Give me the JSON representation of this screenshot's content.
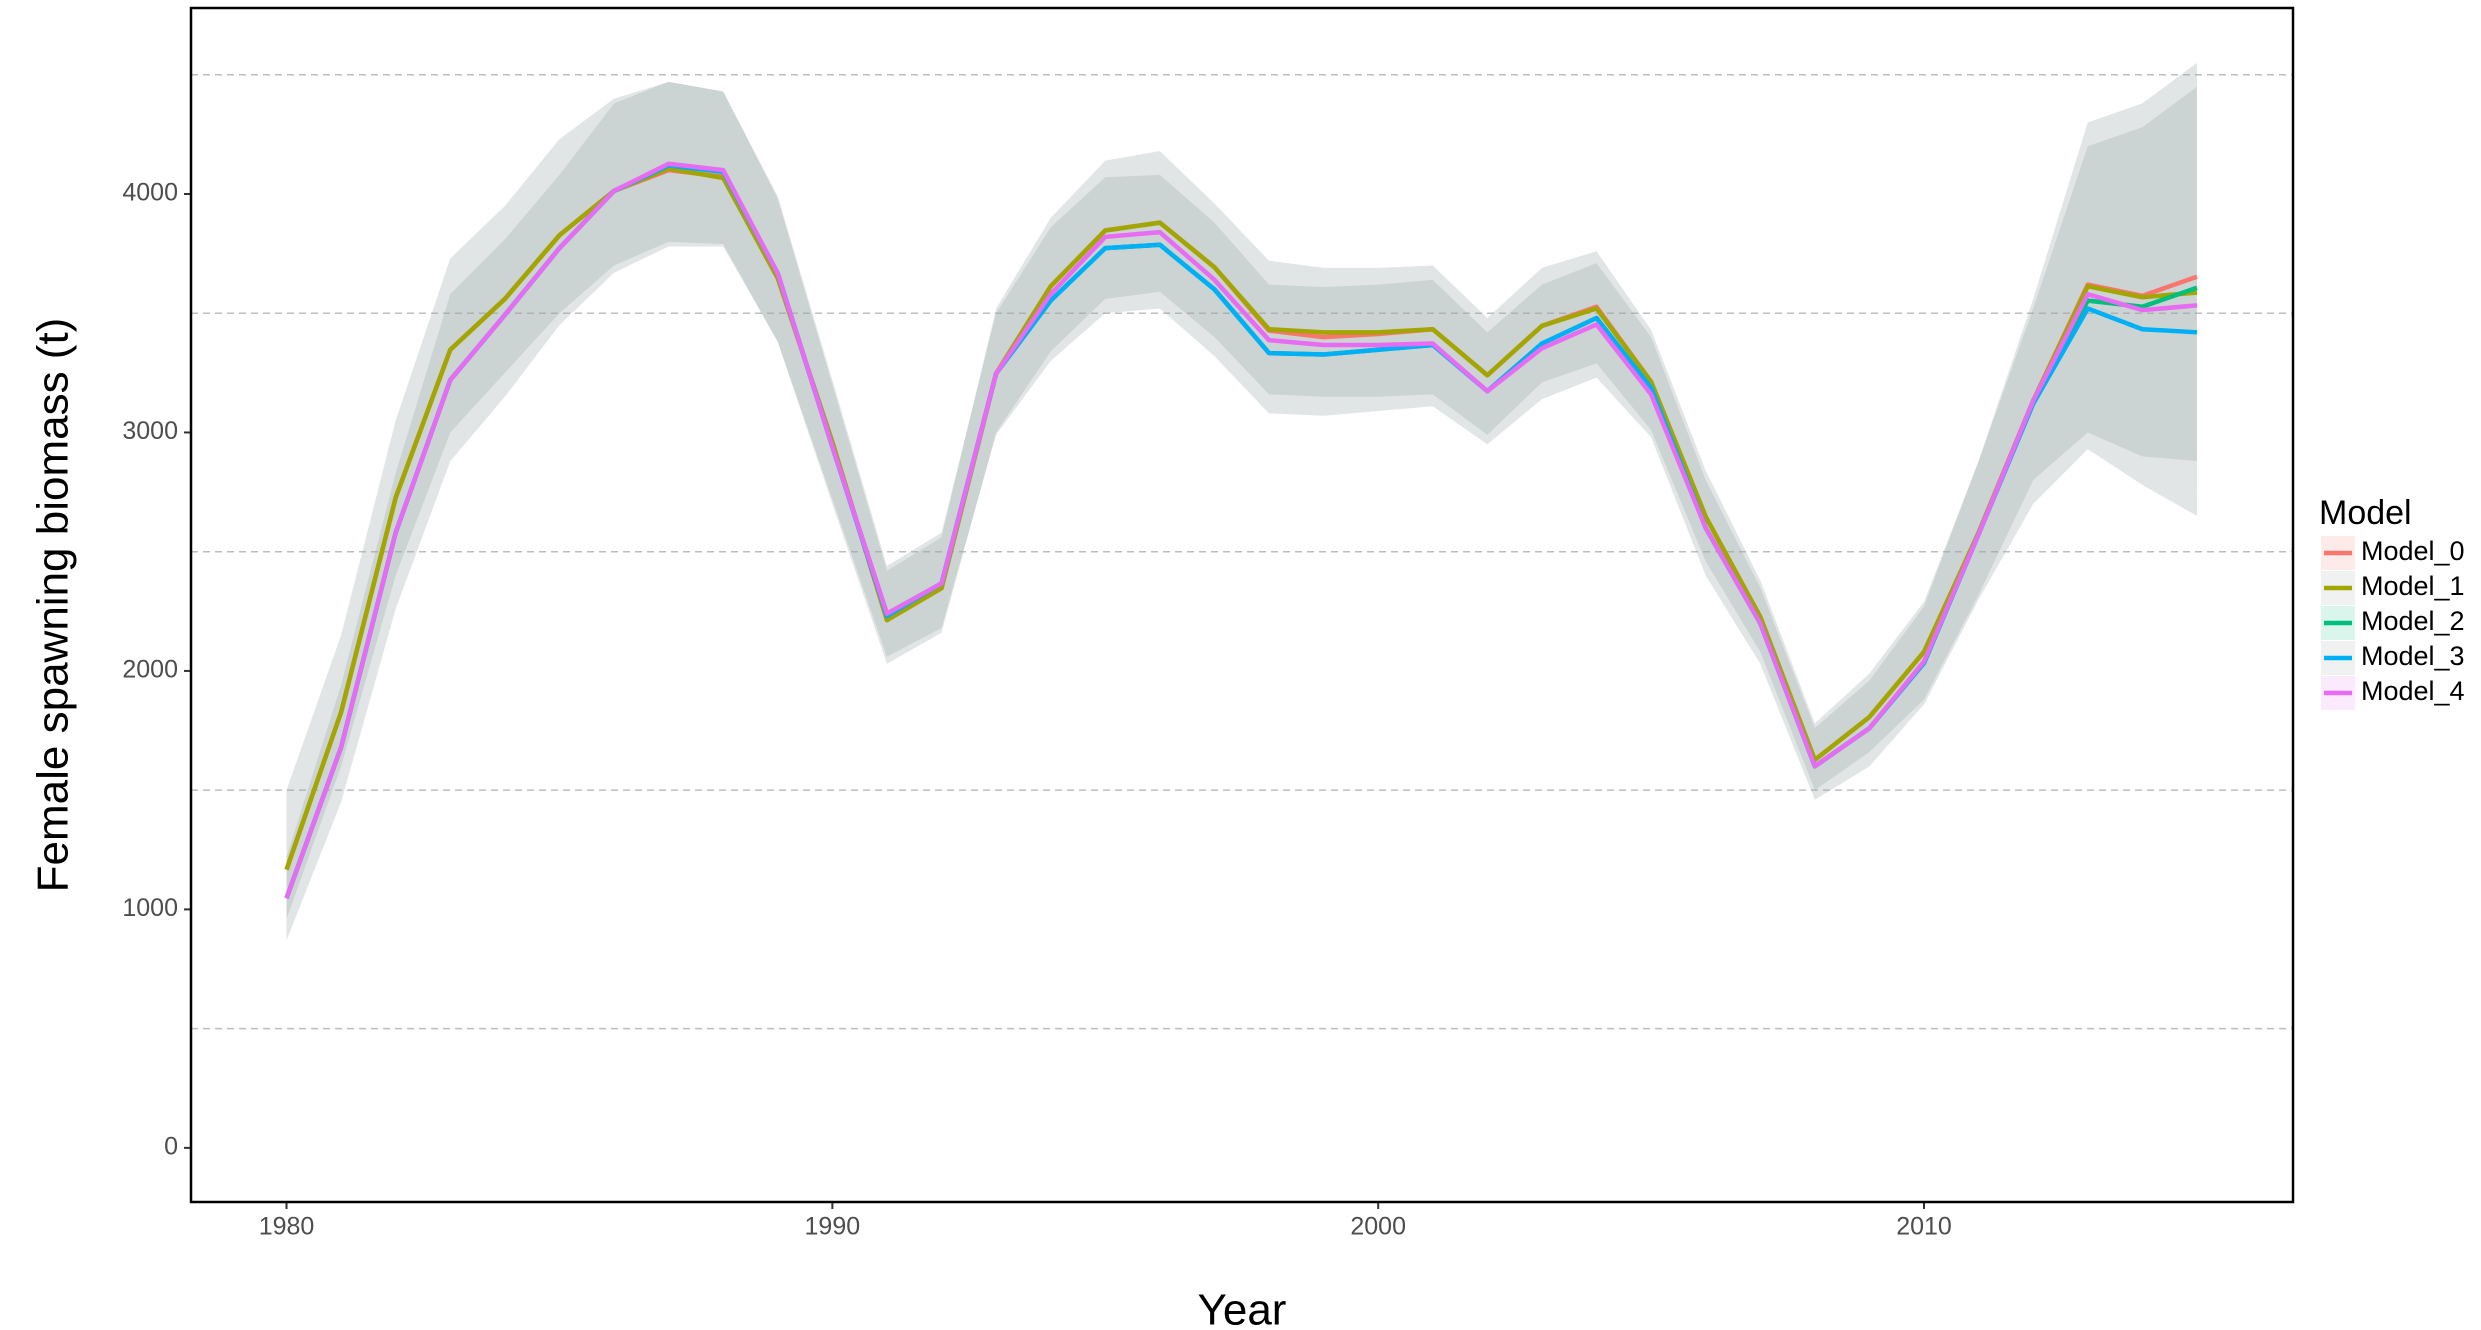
{
  "chart_data": {
    "type": "line",
    "x_label": "Year",
    "y_label": "Female spawning biomass (t)",
    "legend_title": "Model",
    "legend": "right",
    "x": [
      1980,
      1981,
      1982,
      1983,
      1984,
      1985,
      1986,
      1987,
      1988,
      1989,
      1990,
      1991,
      1992,
      1993,
      1994,
      1995,
      1996,
      1997,
      1998,
      1999,
      2000,
      2001,
      2002,
      2003,
      2004,
      2005,
      2006,
      2007,
      2008,
      2009,
      2010,
      2011,
      2012,
      2013,
      2014,
      2015
    ],
    "xlim": [
      1978.25,
      2016.76
    ],
    "xticks": [
      1980,
      1990,
      2000,
      2010
    ],
    "ylim": [
      -227,
      4780
    ],
    "yticks": [
      0,
      1000,
      2000,
      3000,
      4000
    ],
    "minor_grid": [
      500,
      1500,
      2500,
      3500,
      4500
    ],
    "series": [
      {
        "name": "Model_0",
        "color": "#F8766D",
        "values": [
          1167,
          1827,
          2727,
          3347,
          3560,
          3827,
          4013,
          4100,
          4073,
          3647,
          2960,
          2213,
          2347,
          3247,
          3613,
          3847,
          3880,
          3693,
          3427,
          3400,
          3413,
          3433,
          3240,
          3447,
          3527,
          3213,
          2647,
          2227,
          1627,
          1807,
          2080,
          2580,
          3133,
          3620,
          3573,
          3653
        ]
      },
      {
        "name": "Model_1",
        "color": "#A3A500",
        "values": [
          1167,
          1827,
          2727,
          3347,
          3560,
          3827,
          4013,
          4107,
          4067,
          3647,
          2960,
          2213,
          2347,
          3247,
          3613,
          3847,
          3880,
          3693,
          3433,
          3420,
          3420,
          3433,
          3240,
          3447,
          3520,
          3213,
          2647,
          2227,
          1627,
          1807,
          2080,
          2580,
          3133,
          3613,
          3567,
          3587
        ],
        "upper": [
          1500,
          2150,
          3050,
          3730,
          3950,
          4230,
          4400,
          4470,
          4430,
          3980,
          3200,
          2420,
          2560,
          3520,
          3900,
          4140,
          4180,
          3960,
          3720,
          3690,
          3690,
          3700,
          3480,
          3690,
          3760,
          3430,
          2840,
          2380,
          1780,
          1990,
          2290,
          2880,
          3560,
          4300,
          4380,
          4550
        ],
        "lower": [
          960,
          1600,
          2400,
          3000,
          3250,
          3500,
          3700,
          3800,
          3790,
          3380,
          2700,
          2030,
          2160,
          3000,
          3340,
          3560,
          3590,
          3400,
          3160,
          3150,
          3150,
          3160,
          2990,
          3210,
          3290,
          3010,
          2460,
          2080,
          1500,
          1660,
          1880,
          2320,
          2800,
          3000,
          2900,
          2880
        ]
      },
      {
        "name": "Model_2",
        "color": "#00BF7D",
        "values": [
          1047,
          1680,
          2580,
          3220,
          3493,
          3773,
          4013,
          4120,
          4093,
          3667,
          2940,
          2240,
          2367,
          3247,
          3553,
          3773,
          3787,
          3600,
          3333,
          3327,
          3347,
          3367,
          3173,
          3373,
          3480,
          3187,
          2600,
          2200,
          1600,
          1760,
          2033,
          2573,
          3133,
          3553,
          3527,
          3607
        ]
      },
      {
        "name": "Model_3",
        "color": "#00B0F6",
        "values": [
          1047,
          1680,
          2580,
          3220,
          3493,
          3773,
          4013,
          4120,
          4093,
          3667,
          2940,
          2230,
          2367,
          3247,
          3553,
          3773,
          3787,
          3600,
          3333,
          3327,
          3347,
          3367,
          3173,
          3373,
          3480,
          3187,
          2600,
          2200,
          1600,
          1760,
          2033,
          2573,
          3120,
          3520,
          3433,
          3420
        ],
        "upper": [
          1220,
          1940,
          2830,
          3580,
          3810,
          4080,
          4380,
          4470,
          4430,
          3990,
          3220,
          2440,
          2580,
          3500,
          3860,
          4070,
          4080,
          3880,
          3620,
          3610,
          3620,
          3640,
          3420,
          3620,
          3710,
          3400,
          2800,
          2350,
          1760,
          1960,
          2270,
          2880,
          3520,
          4200,
          4280,
          4450
        ],
        "lower": [
          870,
          1450,
          2260,
          2880,
          3150,
          3450,
          3670,
          3780,
          3780,
          3380,
          2720,
          2060,
          2180,
          2990,
          3300,
          3500,
          3520,
          3320,
          3080,
          3070,
          3090,
          3110,
          2950,
          3140,
          3230,
          2980,
          2400,
          2030,
          1460,
          1600,
          1860,
          2300,
          2700,
          2930,
          2780,
          2650
        ]
      },
      {
        "name": "Model_4",
        "color": "#E76BF3",
        "values": [
          1047,
          1680,
          2580,
          3220,
          3493,
          3773,
          4013,
          4127,
          4100,
          3667,
          2940,
          2240,
          2367,
          3247,
          3580,
          3820,
          3840,
          3640,
          3387,
          3367,
          3367,
          3373,
          3173,
          3353,
          3453,
          3160,
          2600,
          2200,
          1600,
          1760,
          2040,
          2573,
          3133,
          3580,
          3513,
          3533
        ]
      }
    ]
  }
}
